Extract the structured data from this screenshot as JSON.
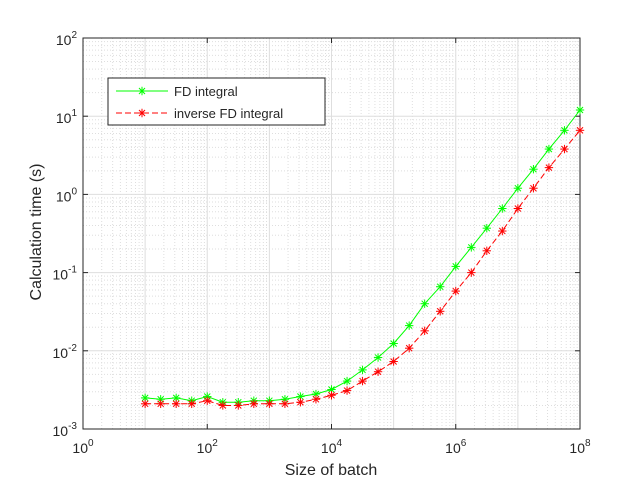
{
  "chart_data": {
    "type": "line",
    "title": "",
    "xlabel": "Size of batch",
    "ylabel": "Calculation time (s)",
    "xscale": "log",
    "yscale": "log",
    "xlim": [
      1,
      100000000
    ],
    "ylim": [
      0.001,
      100
    ],
    "grid": "on",
    "minor_grid": "on",
    "legend_position": "top-left",
    "x_ticks": [
      {
        "value": 1,
        "base": "10",
        "exp": "0"
      },
      {
        "value": 100,
        "base": "10",
        "exp": "2"
      },
      {
        "value": 10000,
        "base": "10",
        "exp": "4"
      },
      {
        "value": 1000000,
        "base": "10",
        "exp": "6"
      },
      {
        "value": 100000000,
        "base": "10",
        "exp": "8"
      }
    ],
    "y_ticks": [
      {
        "value": 0.001,
        "base": "10",
        "exp": "-3"
      },
      {
        "value": 0.01,
        "base": "10",
        "exp": "-2"
      },
      {
        "value": 0.1,
        "base": "10",
        "exp": "-1"
      },
      {
        "value": 1,
        "base": "10",
        "exp": "0"
      },
      {
        "value": 10,
        "base": "10",
        "exp": "1"
      },
      {
        "value": 100,
        "base": "10",
        "exp": "2"
      }
    ],
    "x": [
      10,
      17.8,
      31.6,
      56.2,
      100,
      178,
      316,
      562,
      1000,
      1780,
      3160,
      5620,
      10000,
      17800,
      31600,
      56200,
      100000,
      178000,
      316000,
      562000,
      1000000,
      1780000,
      3160000,
      5620000,
      10000000,
      17800000,
      31600000,
      56200000,
      100000000
    ],
    "series": [
      {
        "name": "FD integral",
        "color": "#00ff00",
        "dash": "solid",
        "marker": "asterisk",
        "values": [
          0.0025,
          0.0024,
          0.0025,
          0.0023,
          0.0026,
          0.0022,
          0.0022,
          0.0023,
          0.0023,
          0.0024,
          0.0026,
          0.0028,
          0.0032,
          0.0041,
          0.0057,
          0.0082,
          0.0124,
          0.021,
          0.04,
          0.066,
          0.12,
          0.21,
          0.37,
          0.66,
          1.2,
          2.1,
          3.8,
          6.6,
          12
        ]
      },
      {
        "name": "inverse FD integral",
        "color": "#ff0000",
        "dash": "dashed",
        "marker": "asterisk",
        "values": [
          0.0021,
          0.0021,
          0.0021,
          0.0021,
          0.0023,
          0.002,
          0.002,
          0.0021,
          0.0021,
          0.0021,
          0.0022,
          0.0024,
          0.0027,
          0.0031,
          0.0041,
          0.0054,
          0.0073,
          0.0108,
          0.018,
          0.032,
          0.058,
          0.1,
          0.19,
          0.34,
          0.66,
          1.2,
          2.2,
          3.8,
          6.6
        ]
      }
    ]
  }
}
